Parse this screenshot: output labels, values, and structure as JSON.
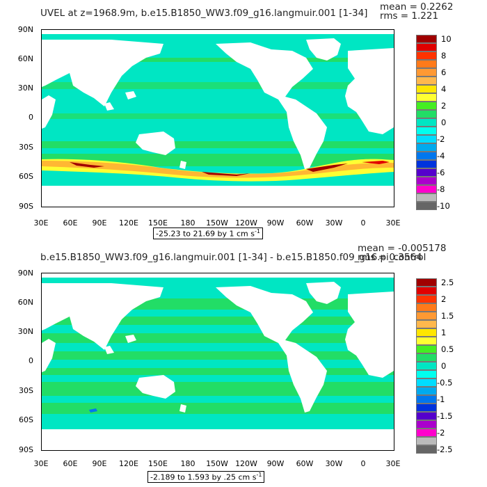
{
  "colors": {
    "land": "#ffffff",
    "frame": "#000000"
  },
  "panels": [
    {
      "id": "top",
      "title": "UVEL at z=1968.9m, b.e15.B1850_WW3.f09_g16.langmuir.001 [1-34]",
      "mean_label": "mean = 0.2262",
      "rms_label": "rms = 1.221",
      "range_label": "-25.23 to 21.69 by 1 cm s",
      "range_sup": "-1",
      "lat_ticks": [
        "90N",
        "60N",
        "30N",
        "0",
        "30S",
        "60S",
        "90S"
      ],
      "lon_ticks": [
        "30E",
        "60E",
        "90E",
        "120E",
        "150E",
        "180",
        "150W",
        "120W",
        "90W",
        "60W",
        "30W",
        "0",
        "30E"
      ],
      "colorbar": {
        "labels": [
          "10",
          "8",
          "6",
          "4",
          "2",
          "0",
          "-2",
          "-4",
          "-6",
          "-8",
          "-10"
        ],
        "colors": [
          "#a00000",
          "#e00000",
          "#ff3300",
          "#ff7a1a",
          "#ff9933",
          "#ffb84d",
          "#ffe600",
          "#ffff33",
          "#44ee22",
          "#22dd66",
          "#00e6c3",
          "#00ffee",
          "#00ddff",
          "#00aaee",
          "#0077ee",
          "#0033dd",
          "#5500cc",
          "#aa00cc",
          "#ff00cc",
          "#bbbbbb",
          "#666666"
        ]
      }
    },
    {
      "id": "bottom",
      "title": "b.e15.B1850_WW3.f09_g16.langmuir.001 [1-34] - b.e15.B1850.f09_g16.pi_control",
      "mean_label": "mean = -0.005178",
      "rms_label": "rms = 0.3564",
      "range_label": "-2.189 to 1.593 by .25 cm s",
      "range_sup": "-1",
      "lat_ticks": [
        "90N",
        "60N",
        "30N",
        "0",
        "30S",
        "60S",
        "90S"
      ],
      "lon_ticks": [
        "30E",
        "60E",
        "90E",
        "120E",
        "150E",
        "180",
        "150W",
        "120W",
        "90W",
        "60W",
        "30W",
        "0",
        "30E"
      ],
      "colorbar": {
        "labels": [
          "2.5",
          "2",
          "1.5",
          "1",
          "0.5",
          "0",
          "-0.5",
          "-1",
          "-1.5",
          "-2",
          "-2.5"
        ],
        "colors": [
          "#a00000",
          "#e00000",
          "#ff3300",
          "#ff7a1a",
          "#ff9933",
          "#ffb84d",
          "#ffe600",
          "#ffff33",
          "#44ee22",
          "#22dd66",
          "#00e6c3",
          "#00ffee",
          "#00ddff",
          "#00aaee",
          "#0077ee",
          "#0033dd",
          "#5500cc",
          "#aa00cc",
          "#ff00cc",
          "#bbbbbb",
          "#666666"
        ]
      }
    }
  ]
}
